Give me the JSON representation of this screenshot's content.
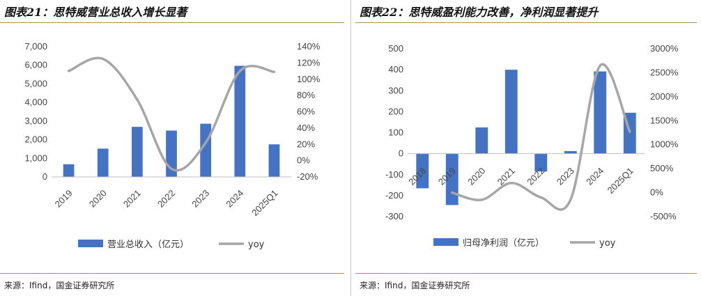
{
  "left": {
    "title": "图表21：思特威营业总收入增长显著",
    "source": "来源：Ifind，国金证券研究所",
    "chart_data": {
      "type": "bar",
      "categories": [
        "2019",
        "2020",
        "2021",
        "2022",
        "2023",
        "2024",
        "2025Q1"
      ],
      "series": [
        {
          "name": "营业总收入（亿元）",
          "type": "bar",
          "axis": "left",
          "color": "#4472c4",
          "values": [
            680,
            1520,
            2690,
            2490,
            2860,
            5970,
            1750
          ]
        },
        {
          "name": "yoy",
          "type": "line",
          "axis": "right",
          "color": "#a6a6a6",
          "smooth": true,
          "values": [
            110,
            125,
            75,
            -10,
            22,
            110,
            109
          ]
        }
      ],
      "ylim_left": [
        0,
        7000
      ],
      "yticks_left": [
        "0",
        "1,000",
        "2,000",
        "3,000",
        "4,000",
        "5,000",
        "6,000",
        "7,000"
      ],
      "ylim_right": [
        -20,
        140
      ],
      "yticks_right": [
        "-20%",
        "0%",
        "20%",
        "40%",
        "60%",
        "80%",
        "100%",
        "120%",
        "140%"
      ],
      "grid": false,
      "legend": "bottom"
    }
  },
  "right": {
    "title": "图表22：思特威盈利能力改善，净利润显著提升",
    "source": "来源：Ifind，国金证券研究所",
    "chart_data": {
      "type": "bar",
      "categories": [
        "2018",
        "2019",
        "2020",
        "2021",
        "2022",
        "2023",
        "2024",
        "2025Q1"
      ],
      "series": [
        {
          "name": "归母净利润（亿元）",
          "type": "bar",
          "axis": "left",
          "color": "#4472c4",
          "values": [
            -165,
            -245,
            125,
            400,
            -85,
            12,
            392,
            195
          ]
        },
        {
          "name": "yoy",
          "type": "line",
          "axis": "right",
          "color": "#a6a6a6",
          "smooth": true,
          "values": [
            null,
            0,
            -150,
            200,
            -100,
            -150,
            2650,
            1270
          ]
        }
      ],
      "ylim_left": [
        -300,
        500
      ],
      "yticks_left": [
        "-300",
        "-200",
        "-100",
        "0",
        "100",
        "200",
        "300",
        "400",
        "500"
      ],
      "ylim_right": [
        -500,
        3000
      ],
      "yticks_right": [
        "-500%",
        "0%",
        "500%",
        "1000%",
        "1500%",
        "2000%",
        "2500%",
        "3000%"
      ],
      "grid": false,
      "legend": "bottom"
    }
  }
}
